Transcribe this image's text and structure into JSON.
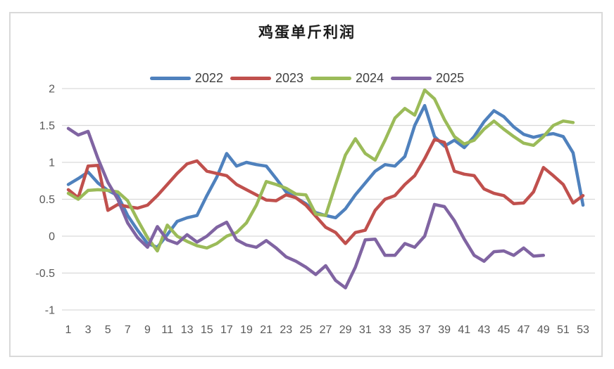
{
  "chart_data": {
    "type": "line",
    "title": "鸡蛋单斤利润",
    "x_start": 1,
    "x_step": 1,
    "x_ticks": [
      1,
      3,
      5,
      7,
      9,
      11,
      13,
      15,
      17,
      19,
      21,
      23,
      25,
      27,
      29,
      31,
      33,
      35,
      37,
      39,
      41,
      43,
      45,
      47,
      49,
      51,
      53
    ],
    "y_ticks": [
      2,
      1.5,
      1,
      0.5,
      0,
      -0.5,
      -1
    ],
    "ylim": [
      -1,
      2
    ],
    "xlim": [
      1,
      53
    ],
    "grid": true,
    "legend_position": "top",
    "gridline_color": "#D9D9D9",
    "series": [
      {
        "name": "2022",
        "color": "#4F81BD",
        "values": [
          0.7,
          0.78,
          0.87,
          0.72,
          0.62,
          0.55,
          0.28,
          0.08,
          -0.1,
          -0.15,
          0.02,
          0.2,
          0.25,
          0.28,
          0.55,
          0.8,
          1.12,
          0.95,
          1.0,
          0.97,
          0.95,
          0.78,
          0.6,
          0.52,
          0.44,
          0.32,
          0.28,
          0.25,
          0.37,
          0.56,
          0.72,
          0.88,
          0.97,
          0.95,
          1.08,
          1.5,
          1.77,
          1.35,
          1.22,
          1.3,
          1.2,
          1.35,
          1.55,
          1.7,
          1.62,
          1.48,
          1.38,
          1.34,
          1.37,
          1.39,
          1.35,
          1.13,
          0.42
        ]
      },
      {
        "name": "2023",
        "color": "#C0504D",
        "values": [
          0.63,
          0.52,
          0.95,
          0.96,
          0.35,
          0.43,
          0.4,
          0.38,
          0.42,
          0.55,
          0.7,
          0.85,
          0.98,
          1.02,
          0.88,
          0.85,
          0.82,
          0.7,
          0.63,
          0.56,
          0.49,
          0.48,
          0.56,
          0.52,
          0.42,
          0.27,
          0.12,
          0.05,
          -0.1,
          0.05,
          0.08,
          0.35,
          0.5,
          0.55,
          0.7,
          0.82,
          1.05,
          1.31,
          1.27,
          0.88,
          0.84,
          0.82,
          0.64,
          0.58,
          0.55,
          0.44,
          0.45,
          0.6,
          0.93,
          0.82,
          0.7,
          0.45,
          0.55
        ]
      },
      {
        "name": "2024",
        "color": "#9BBB59",
        "values": [
          0.58,
          0.5,
          0.62,
          0.63,
          0.62,
          0.6,
          0.48,
          0.22,
          -0.02,
          -0.2,
          0.15,
          0.0,
          -0.07,
          -0.13,
          -0.16,
          -0.1,
          0.0,
          0.05,
          0.18,
          0.42,
          0.74,
          0.7,
          0.65,
          0.57,
          0.56,
          0.3,
          0.28,
          0.7,
          1.1,
          1.32,
          1.12,
          1.03,
          1.3,
          1.6,
          1.73,
          1.64,
          1.98,
          1.86,
          1.58,
          1.35,
          1.25,
          1.3,
          1.45,
          1.56,
          1.45,
          1.35,
          1.26,
          1.23,
          1.35,
          1.5,
          1.56,
          1.54
        ]
      },
      {
        "name": "2025",
        "color": "#8064A2",
        "values": [
          1.46,
          1.37,
          1.42,
          1.05,
          0.73,
          0.5,
          0.18,
          -0.02,
          -0.15,
          0.13,
          -0.05,
          -0.1,
          0.02,
          -0.08,
          0.0,
          0.12,
          0.19,
          -0.05,
          -0.12,
          -0.15,
          -0.06,
          -0.16,
          -0.28,
          -0.34,
          -0.42,
          -0.52,
          -0.4,
          -0.6,
          -0.7,
          -0.42,
          -0.05,
          -0.04,
          -0.26,
          -0.26,
          -0.1,
          -0.15,
          0.0,
          0.43,
          0.4,
          0.21,
          -0.04,
          -0.26,
          -0.34,
          -0.21,
          -0.2,
          -0.26,
          -0.16,
          -0.27,
          -0.26
        ]
      }
    ]
  }
}
